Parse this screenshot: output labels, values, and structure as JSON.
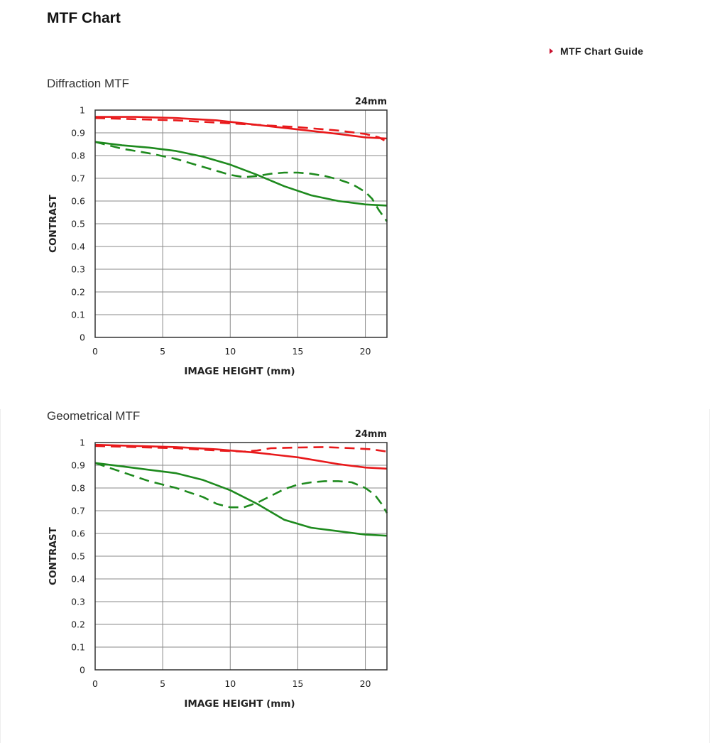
{
  "header": {
    "title": "MTF Chart",
    "guide_link": "MTF Chart Guide"
  },
  "colors": {
    "sagittal_red": "#e8191b",
    "meridional_green": "#1e8a1e",
    "grid": "#8a8a8a",
    "guide_arrow": "#c8102e"
  },
  "chart_data": [
    {
      "type": "line",
      "title": "Diffraction MTF",
      "annotation": "24mm",
      "xlabel": "IMAGE HEIGHT (mm)",
      "ylabel": "CONTRAST",
      "xlim": [
        0,
        21.6
      ],
      "ylim": [
        0,
        1
      ],
      "xticks": [
        0,
        5,
        10,
        15,
        20
      ],
      "yticks": [
        0,
        0.1,
        0.2,
        0.3,
        0.4,
        0.5,
        0.6,
        0.7,
        0.8,
        0.9,
        1
      ],
      "ytick_labels": [
        "0",
        "0.1",
        "0.2",
        "0.3",
        "0.4",
        "0.5",
        "0.6",
        "0.7",
        "0.8",
        "0.9",
        "1"
      ],
      "grid": true,
      "series": [
        {
          "color": "#e8191b",
          "dash": false,
          "x": [
            0,
            3,
            6,
            9,
            12,
            15,
            18,
            20,
            21.6
          ],
          "y": [
            0.97,
            0.97,
            0.965,
            0.955,
            0.935,
            0.915,
            0.895,
            0.88,
            0.875
          ]
        },
        {
          "color": "#e8191b",
          "dash": true,
          "x": [
            0,
            3,
            6,
            9,
            12,
            15,
            18,
            20,
            21,
            21.6
          ],
          "y": [
            0.965,
            0.96,
            0.955,
            0.945,
            0.935,
            0.925,
            0.91,
            0.895,
            0.88,
            0.86
          ]
        },
        {
          "color": "#1e8a1e",
          "dash": false,
          "x": [
            0,
            2,
            4,
            6,
            8,
            10,
            12,
            14,
            16,
            18,
            20,
            21.6
          ],
          "y": [
            0.86,
            0.845,
            0.835,
            0.82,
            0.795,
            0.76,
            0.715,
            0.665,
            0.625,
            0.6,
            0.585,
            0.58
          ]
        },
        {
          "color": "#1e8a1e",
          "dash": true,
          "x": [
            0,
            2,
            4,
            6,
            8,
            10,
            11,
            12,
            13,
            14,
            15,
            16,
            17,
            18,
            19,
            20,
            20.5,
            21,
            21.6
          ],
          "y": [
            0.86,
            0.83,
            0.81,
            0.785,
            0.75,
            0.715,
            0.705,
            0.71,
            0.72,
            0.725,
            0.725,
            0.72,
            0.71,
            0.695,
            0.675,
            0.64,
            0.61,
            0.56,
            0.51
          ]
        }
      ]
    },
    {
      "type": "line",
      "title": "Geometrical MTF",
      "annotation": "24mm",
      "xlabel": "IMAGE HEIGHT (mm)",
      "ylabel": "CONTRAST",
      "xlim": [
        0,
        21.6
      ],
      "ylim": [
        0,
        1
      ],
      "xticks": [
        0,
        5,
        10,
        15,
        20
      ],
      "yticks": [
        0,
        0.1,
        0.2,
        0.3,
        0.4,
        0.5,
        0.6,
        0.7,
        0.8,
        0.9,
        1
      ],
      "ytick_labels": [
        "0",
        "0.1",
        "0.2",
        "0.3",
        "0.4",
        "0.5",
        "0.6",
        "0.7",
        "0.8",
        "0.9",
        "1"
      ],
      "grid": true,
      "series": [
        {
          "color": "#e8191b",
          "dash": false,
          "x": [
            0,
            3,
            6,
            9,
            12,
            15,
            18,
            20,
            21.6
          ],
          "y": [
            0.99,
            0.985,
            0.98,
            0.97,
            0.955,
            0.935,
            0.905,
            0.89,
            0.885
          ]
        },
        {
          "color": "#e8191b",
          "dash": true,
          "x": [
            0,
            3,
            6,
            9,
            11,
            12,
            13,
            15,
            17,
            19,
            20.5,
            21.6
          ],
          "y": [
            0.985,
            0.98,
            0.975,
            0.965,
            0.96,
            0.965,
            0.975,
            0.978,
            0.98,
            0.975,
            0.97,
            0.96
          ]
        },
        {
          "color": "#1e8a1e",
          "dash": false,
          "x": [
            0,
            2,
            4,
            6,
            8,
            10,
            12,
            14,
            16,
            18,
            20,
            21.6
          ],
          "y": [
            0.91,
            0.895,
            0.88,
            0.865,
            0.835,
            0.79,
            0.73,
            0.66,
            0.625,
            0.61,
            0.595,
            0.59
          ]
        },
        {
          "color": "#1e8a1e",
          "dash": true,
          "x": [
            0,
            2,
            4,
            6,
            8,
            9,
            10,
            11,
            12,
            13,
            14,
            15,
            16,
            17,
            18,
            19,
            20,
            20.7,
            21.2,
            21.6
          ],
          "y": [
            0.91,
            0.87,
            0.83,
            0.8,
            0.76,
            0.73,
            0.715,
            0.715,
            0.735,
            0.765,
            0.795,
            0.815,
            0.825,
            0.83,
            0.83,
            0.825,
            0.8,
            0.77,
            0.73,
            0.69
          ]
        }
      ]
    }
  ]
}
